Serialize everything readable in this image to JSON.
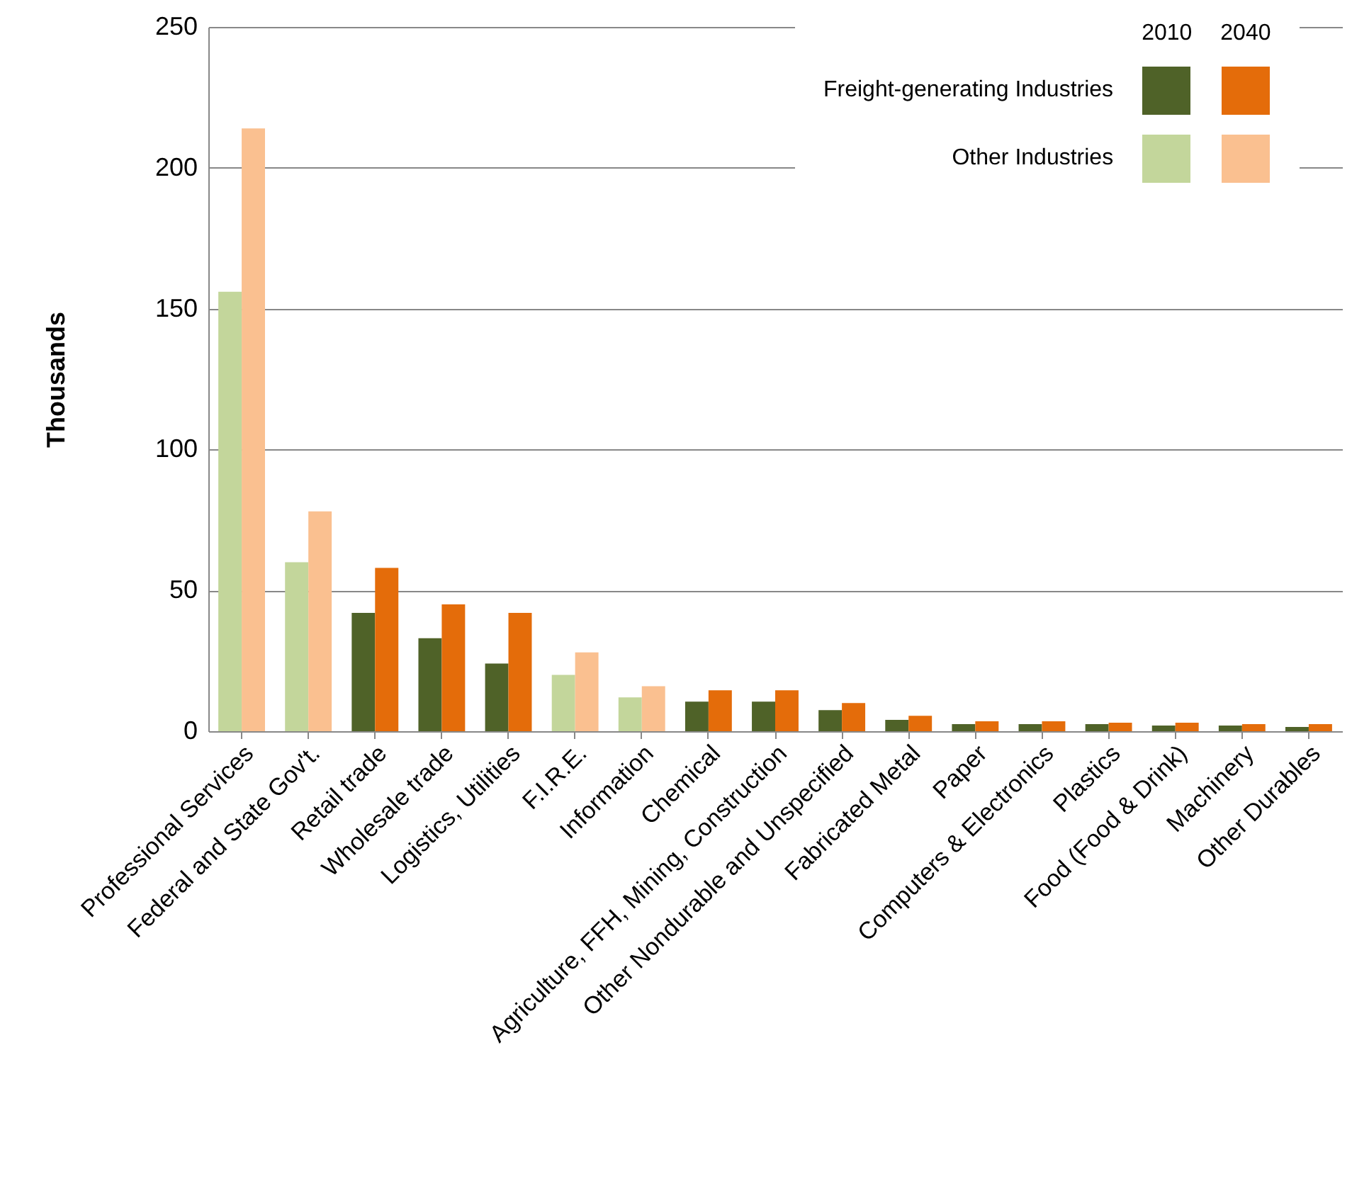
{
  "chart_data": {
    "type": "bar",
    "ylabel": "Thousands",
    "categories": [
      "Professional Services",
      "Federal and State Gov't.",
      "Retail trade",
      "Wholesale trade",
      "Logistics, Utilities",
      "F.I.R.E.",
      "Information",
      "Chemical",
      "Agriculture, FFH, Mining, Construction",
      "Other Nondurable and Unspecified",
      "Fabricated Metal",
      "Paper",
      "Computers & Electronics",
      "Plastics",
      "Food (Food & Drink)",
      "Machinery",
      "Other Durables"
    ],
    "series": [
      {
        "name": "Freight-generating Industries",
        "color": "#4f6228",
        "values": [
          null,
          null,
          42,
          33,
          24,
          null,
          null,
          10.5,
          10.5,
          7.5,
          4,
          2.5,
          2.5,
          2.5,
          2,
          2,
          1.5
        ]
      },
      {
        "name": "Other Industries",
        "color": "#c3d69b",
        "values": [
          156,
          60,
          null,
          null,
          null,
          20,
          12,
          null,
          null,
          null,
          null,
          null,
          null,
          null,
          null,
          null,
          null
        ]
      },
      {
        "color": "#e46c0a",
        "values": [
          null,
          null,
          58,
          45,
          42,
          null,
          null,
          14.5,
          14.5,
          10,
          5.5,
          3.5,
          3.5,
          3,
          3,
          2.5,
          2.5
        ]
      },
      {
        "color": "#fac090",
        "values": [
          214,
          78,
          null,
          null,
          null,
          28,
          16,
          null,
          null,
          null,
          null,
          null,
          null,
          null,
          null,
          null,
          null
        ]
      }
    ],
    "annotations": [
      "2010",
      "2040"
    ],
    "ylim": [
      0,
      250
    ],
    "yticks": [
      0,
      50,
      100,
      150,
      200,
      250
    ],
    "grid": "y",
    "legend": "top right"
  }
}
